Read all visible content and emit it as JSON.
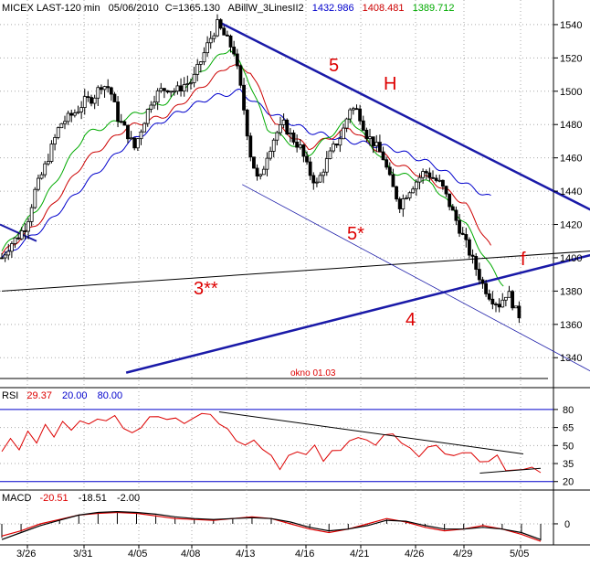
{
  "header": {
    "symbol": "MICEX LAST-120 min",
    "date": "05/06/2010",
    "close": "C=1365.130",
    "indicator": "ABillW_3LinesII2",
    "val1": "1432.986",
    "val2": "1408.481",
    "val3": "1389.712"
  },
  "rsi_header": {
    "label": "RSI",
    "v1": "29.37",
    "v2": "20.00",
    "v3": "80.00"
  },
  "macd_header": {
    "label": "MACD",
    "v1": "-20.51",
    "v2": "-18.51",
    "v3": "-2.00"
  },
  "annotations": {
    "five": "5",
    "h": "H",
    "five_star": "5*",
    "three": "3**",
    "four": "4",
    "f": "f",
    "okno": "okno 01.03"
  },
  "colors": {
    "candle": "#000000",
    "line_blue": "#0000cc",
    "line_red": "#cc0000",
    "line_green": "#00aa00",
    "trend_bold": "#1a1aa8",
    "annotation": "#dd0000",
    "grid": "#aaaaaa",
    "rsi_line": "#dd0000"
  },
  "chart_data": [
    {
      "type": "candlestick",
      "title": "MICEX LAST-120 min",
      "x_ticks": [
        "3/26",
        "3/31",
        "4/05",
        "4/08",
        "4/13",
        "4/16",
        "4/21",
        "4/26",
        "4/29",
        "5/05"
      ],
      "y_ticks": [
        1340,
        1360,
        1380,
        1400,
        1420,
        1440,
        1460,
        1480,
        1500,
        1520,
        1540
      ],
      "ylim": [
        1333,
        1546
      ],
      "close_path": [
        [
          0,
          1400
        ],
        [
          8,
          1408
        ],
        [
          16,
          1413
        ],
        [
          24,
          1420
        ],
        [
          32,
          1440
        ],
        [
          40,
          1452
        ],
        [
          48,
          1466
        ],
        [
          56,
          1480
        ],
        [
          64,
          1484
        ],
        [
          72,
          1488
        ],
        [
          80,
          1494
        ],
        [
          88,
          1496
        ],
        [
          96,
          1504
        ],
        [
          104,
          1502
        ],
        [
          112,
          1484
        ],
        [
          120,
          1476
        ],
        [
          128,
          1466
        ],
        [
          136,
          1480
        ],
        [
          144,
          1494
        ],
        [
          152,
          1500
        ],
        [
          160,
          1502
        ],
        [
          168,
          1500
        ],
        [
          176,
          1504
        ],
        [
          184,
          1506
        ],
        [
          192,
          1518
        ],
        [
          200,
          1530
        ],
        [
          208,
          1540
        ],
        [
          216,
          1532
        ],
        [
          224,
          1524
        ],
        [
          232,
          1496
        ],
        [
          240,
          1462
        ],
        [
          248,
          1444
        ],
        [
          256,
          1462
        ],
        [
          264,
          1474
        ],
        [
          272,
          1480
        ],
        [
          280,
          1472
        ],
        [
          288,
          1466
        ],
        [
          296,
          1452
        ],
        [
          304,
          1444
        ],
        [
          312,
          1456
        ],
        [
          320,
          1466
        ],
        [
          328,
          1474
        ],
        [
          336,
          1490
        ],
        [
          344,
          1488
        ],
        [
          352,
          1474
        ],
        [
          360,
          1468
        ],
        [
          368,
          1460
        ],
        [
          376,
          1444
        ],
        [
          384,
          1432
        ],
        [
          392,
          1440
        ],
        [
          400,
          1446
        ],
        [
          408,
          1452
        ],
        [
          416,
          1448
        ],
        [
          424,
          1444
        ],
        [
          432,
          1432
        ],
        [
          440,
          1420
        ],
        [
          448,
          1408
        ],
        [
          456,
          1396
        ],
        [
          464,
          1384
        ],
        [
          472,
          1376
        ],
        [
          480,
          1372
        ],
        [
          488,
          1380
        ],
        [
          496,
          1368
        ],
        [
          500,
          1365
        ]
      ],
      "series": [
        {
          "name": "1432.986",
          "color": "#0000cc",
          "anchors": [
            [
              0,
              1400
            ],
            [
              40,
              1418
            ],
            [
              80,
              1444
            ],
            [
              120,
              1468
            ],
            [
              160,
              1484
            ],
            [
              200,
              1496
            ],
            [
              230,
              1500
            ],
            [
              256,
              1488
            ],
            [
              296,
              1476
            ],
            [
              336,
              1470
            ],
            [
              376,
              1466
            ],
            [
              416,
              1456
            ],
            [
              448,
              1444
            ],
            [
              472,
              1436
            ]
          ]
        },
        {
          "name": "1408.481",
          "color": "#cc0000",
          "anchors": [
            [
              0,
              1402
            ],
            [
              40,
              1424
            ],
            [
              80,
              1458
            ],
            [
              120,
              1478
            ],
            [
              160,
              1486
            ],
            [
              200,
              1506
            ],
            [
              220,
              1516
            ],
            [
              240,
              1512
            ],
            [
              264,
              1480
            ],
            [
              296,
              1466
            ],
            [
              336,
              1478
            ],
            [
              376,
              1458
            ],
            [
              416,
              1446
            ],
            [
              448,
              1432
            ],
            [
              472,
              1406
            ]
          ]
        },
        {
          "name": "1389.712",
          "color": "#00aa00",
          "anchors": [
            [
              0,
              1404
            ],
            [
              40,
              1434
            ],
            [
              80,
              1474
            ],
            [
              120,
              1484
            ],
            [
              160,
              1494
            ],
            [
              200,
              1516
            ],
            [
              220,
              1526
            ],
            [
              236,
              1510
            ],
            [
              256,
              1478
            ],
            [
              296,
              1462
            ],
            [
              336,
              1484
            ],
            [
              376,
              1452
            ],
            [
              416,
              1444
            ],
            [
              448,
              1420
            ],
            [
              470,
              1396
            ],
            [
              484,
              1384
            ]
          ]
        }
      ],
      "trendlines": [
        {
          "label": "5",
          "from": [
            208,
            1542
          ],
          "to": [
            520,
            1444
          ],
          "weight": "bold"
        },
        {
          "label": "3**",
          "from": [
            0,
            1380
          ],
          "to": [
            520,
            1402
          ],
          "weight": "normal"
        },
        {
          "label": "4",
          "from": [
            120,
            1331
          ],
          "to": [
            520,
            1394
          ],
          "weight": "bold"
        },
        {
          "label": "5*",
          "from": [
            232,
            1444
          ],
          "to": [
            520,
            1348
          ],
          "weight": "thin"
        }
      ]
    },
    {
      "type": "line",
      "title": "RSI",
      "y_ticks": [
        20,
        35,
        50,
        65,
        80
      ],
      "ylim": [
        16,
        86
      ],
      "levels": [
        20,
        80
      ],
      "values": [
        45,
        55,
        48,
        60,
        54,
        66,
        58,
        70,
        62,
        72,
        66,
        74,
        69,
        76,
        64,
        60,
        66,
        72,
        76,
        70,
        74,
        68,
        72,
        78,
        74,
        70,
        62,
        55,
        50,
        54,
        48,
        40,
        32,
        40,
        46,
        42,
        50,
        38,
        44,
        48,
        52,
        58,
        54,
        50,
        60,
        58,
        54,
        46,
        42,
        48,
        50,
        44,
        40,
        46,
        42,
        38,
        36,
        42,
        30,
        28,
        32,
        30,
        29
      ],
      "trendlines": [
        {
          "from_index": 25,
          "from_value": 78,
          "to_index": 60,
          "to_value": 43
        },
        {
          "from_index": 55,
          "from_value": 27,
          "to_index": 62,
          "to_value": 31
        }
      ]
    },
    {
      "type": "line",
      "title": "MACD",
      "y_ticks": [
        0
      ],
      "ylim": [
        -22,
        24
      ],
      "series": [
        {
          "name": "-20.51",
          "color": "#dd0000",
          "values": [
            -14,
            -8,
            0,
            5,
            10,
            12,
            13,
            12,
            9,
            6,
            5,
            4,
            6,
            8,
            6,
            0,
            -6,
            -10,
            -6,
            0,
            6,
            2,
            -4,
            -8,
            -6,
            -2,
            -6,
            -12,
            -20
          ]
        },
        {
          "name": "-18.51",
          "color": "#000000",
          "values": [
            -18,
            -10,
            -2,
            4,
            10,
            13,
            14,
            13,
            11,
            8,
            6,
            5,
            6,
            7,
            6,
            2,
            -4,
            -8,
            -6,
            -2,
            4,
            3,
            -2,
            -6,
            -6,
            -4,
            -6,
            -10,
            -18
          ]
        }
      ]
    }
  ]
}
